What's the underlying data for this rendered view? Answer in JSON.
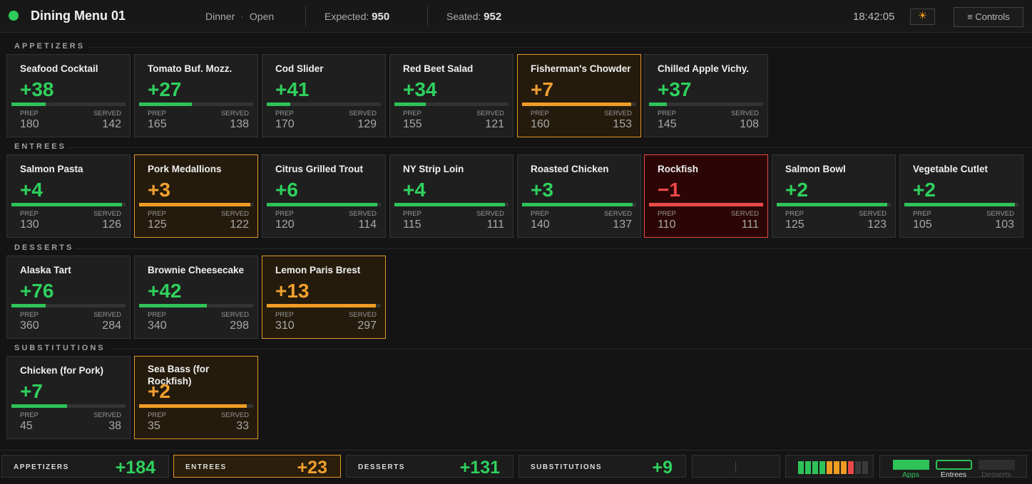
{
  "header": {
    "title": "Dining Menu 01",
    "meal": "Dinner",
    "separator": "·",
    "state": "Open",
    "expected_label": "Expected:",
    "expected_value": "950",
    "seated_label": "Seated:",
    "seated_value": "952",
    "clock": "18:42:05",
    "theme_icon": "☀",
    "controls_label": "≡  Controls",
    "status_color": "#2ecc5a"
  },
  "card_labels": {
    "prep": "PREP",
    "served": "SERVED"
  },
  "sections": {
    "appetizers": {
      "label": "APPETIZERS",
      "items": [
        {
          "name": "Seafood Cocktail",
          "delta": "+38",
          "prep": "180",
          "served": "142",
          "status": "ok"
        },
        {
          "name": "Tomato Buf. Mozz.",
          "delta": "+27",
          "prep": "165",
          "served": "138",
          "status": "ok"
        },
        {
          "name": "Cod Slider",
          "delta": "+41",
          "prep": "170",
          "served": "129",
          "status": "ok"
        },
        {
          "name": "Red Beet Salad",
          "delta": "+34",
          "prep": "155",
          "served": "121",
          "status": "ok"
        },
        {
          "name": "Fisherman's Chowder",
          "delta": "+7",
          "prep": "160",
          "served": "153",
          "status": "warn"
        },
        {
          "name": "Chilled Apple Vichy.",
          "delta": "+37",
          "prep": "145",
          "served": "108",
          "status": "ok"
        }
      ]
    },
    "entrees": {
      "label": "ENTREES",
      "items": [
        {
          "name": "Salmon Pasta",
          "delta": "+4",
          "prep": "130",
          "served": "126",
          "status": "ok"
        },
        {
          "name": "Pork Medallions",
          "delta": "+3",
          "prep": "125",
          "served": "122",
          "status": "warn"
        },
        {
          "name": "Citrus Grilled Trout",
          "delta": "+6",
          "prep": "120",
          "served": "114",
          "status": "ok"
        },
        {
          "name": "NY Strip Loin",
          "delta": "+4",
          "prep": "115",
          "served": "111",
          "status": "ok"
        },
        {
          "name": "Roasted Chicken",
          "delta": "+3",
          "prep": "140",
          "served": "137",
          "status": "ok"
        },
        {
          "name": "Rockfish",
          "delta": "−1",
          "prep": "110",
          "served": "111",
          "status": "bad"
        },
        {
          "name": "Salmon Bowl",
          "delta": "+2",
          "prep": "125",
          "served": "123",
          "status": "ok"
        },
        {
          "name": "Vegetable Cutlet",
          "delta": "+2",
          "prep": "105",
          "served": "103",
          "status": "ok"
        }
      ]
    },
    "desserts": {
      "label": "DESSERTS",
      "items": [
        {
          "name": "Alaska Tart",
          "delta": "+76",
          "prep": "360",
          "served": "284",
          "status": "ok"
        },
        {
          "name": "Brownie Cheesecake",
          "delta": "+42",
          "prep": "340",
          "served": "298",
          "status": "ok"
        },
        {
          "name": "Lemon Paris Brest",
          "delta": "+13",
          "prep": "310",
          "served": "297",
          "status": "warn"
        }
      ]
    },
    "substitutions": {
      "label": "SUBSTITUTIONS",
      "items": [
        {
          "name": "Chicken (for Pork)",
          "delta": "+7",
          "prep": "45",
          "served": "38",
          "status": "ok"
        },
        {
          "name": "Sea Bass (for Rockfish)",
          "delta": "+2",
          "prep": "35",
          "served": "33",
          "status": "warn"
        }
      ]
    }
  },
  "totals": [
    {
      "label": "APPETIZERS",
      "value": "+184",
      "status": "ok"
    },
    {
      "label": "ENTREES",
      "value": "+23",
      "status": "warn"
    },
    {
      "label": "DESSERTS",
      "value": "+131",
      "status": "ok"
    },
    {
      "label": "SUBSTITUTIONS",
      "value": "+9",
      "status": "ok"
    }
  ],
  "level_meter": [
    "#2ec259",
    "#2ec259",
    "#2ec259",
    "#2ec259",
    "#ef9c25",
    "#ef9c25",
    "#ef9c25",
    "#e84a4a",
    "#3a3a3a",
    "#3a3a3a"
  ],
  "modes": [
    {
      "label": "Apps",
      "state": "on"
    },
    {
      "label": "Entrees",
      "state": "partial"
    },
    {
      "label": "Desserts",
      "state": "off"
    }
  ],
  "colors": {
    "ok": "#2fd05d",
    "warn": "#f0a030",
    "bad": "#f04848"
  }
}
